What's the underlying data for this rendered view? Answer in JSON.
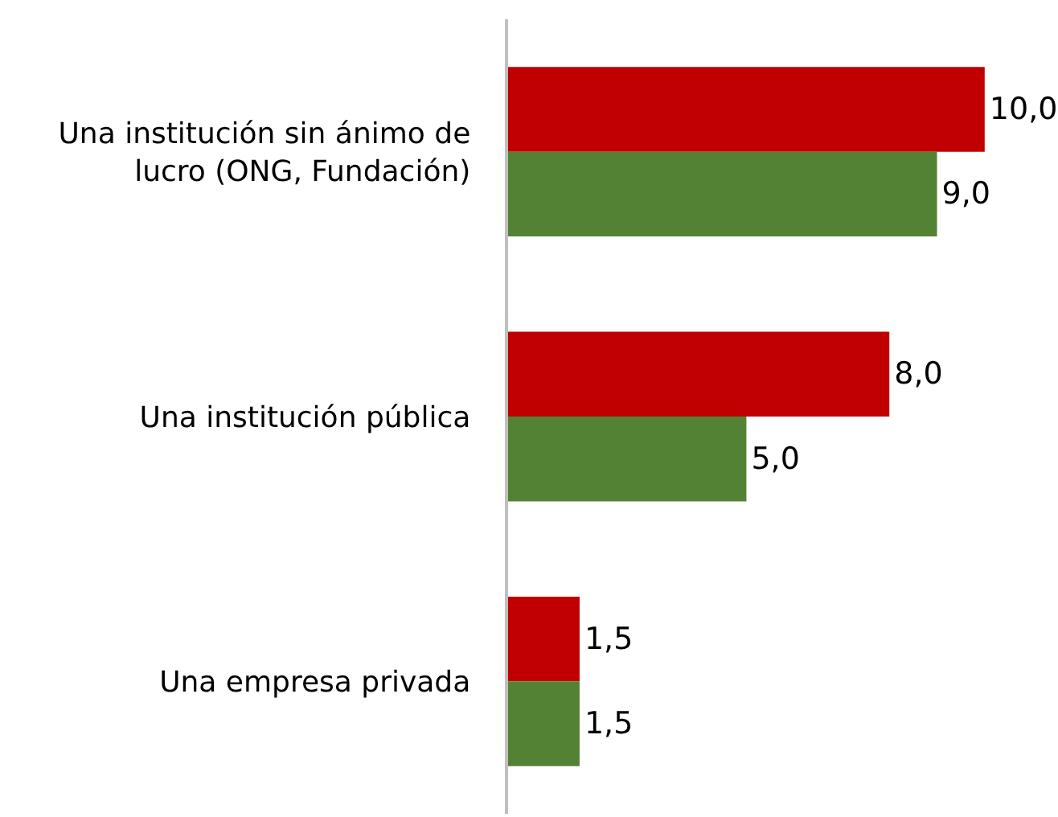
{
  "chart_data": {
    "type": "bar",
    "orientation": "horizontal",
    "categories": [
      "Una institución sin ánimo de lucro (ONG, Fundación)",
      "Una institución pública",
      "Una empresa privada"
    ],
    "tick_labels": "y",
    "series": [
      {
        "color": "#c00000",
        "values": [
          10,
          8,
          1.5
        ],
        "value_labels": [
          "10,0",
          "8,0",
          "1,5"
        ]
      },
      {
        "color": "#548235",
        "values": [
          9,
          5,
          1.5
        ],
        "value_labels": [
          "9,0",
          "5,0",
          "1,5"
        ]
      }
    ]
  }
}
